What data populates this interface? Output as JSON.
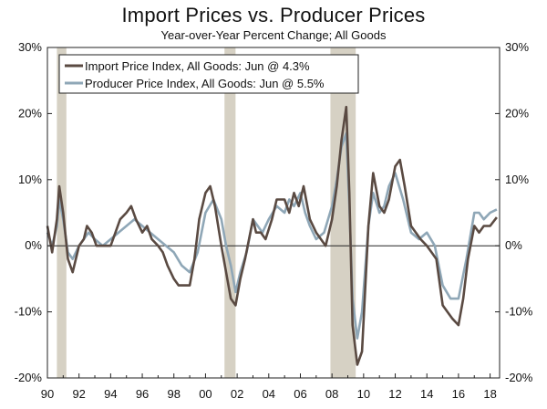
{
  "chart_data": {
    "type": "line",
    "title": "Import Prices vs. Producer Prices",
    "subtitle": "Year-over-Year Percent Change; All Goods",
    "xlabel": "",
    "ylabel": "",
    "xlim": [
      1990,
      2018.6
    ],
    "ylim": [
      -20,
      30
    ],
    "yticks": [
      -20,
      -10,
      0,
      10,
      20,
      30
    ],
    "ytick_labels": [
      "-20%",
      "-10%",
      "0%",
      "10%",
      "20%",
      "30%"
    ],
    "xtick_labels": [
      {
        "x": 1990,
        "label": "90"
      },
      {
        "x": 1992,
        "label": "92"
      },
      {
        "x": 1994,
        "label": "94"
      },
      {
        "x": 1996,
        "label": "96"
      },
      {
        "x": 1998,
        "label": "98"
      },
      {
        "x": 2000,
        "label": "00"
      },
      {
        "x": 2002,
        "label": "02"
      },
      {
        "x": 2004,
        "label": "04"
      },
      {
        "x": 2006,
        "label": "06"
      },
      {
        "x": 2008,
        "label": "08"
      },
      {
        "x": 2010,
        "label": "10"
      },
      {
        "x": 2012,
        "label": "12"
      },
      {
        "x": 2014,
        "label": "14"
      },
      {
        "x": 2016,
        "label": "16"
      },
      {
        "x": 2018,
        "label": "18"
      }
    ],
    "grid": false,
    "legend_position": "top-left",
    "recessions": [
      {
        "start": 1990.6,
        "end": 1991.2
      },
      {
        "start": 2001.2,
        "end": 2001.9
      },
      {
        "start": 2007.9,
        "end": 2009.5
      }
    ],
    "series": [
      {
        "name": "Import Price Index, All Goods: Jun @ 4.3%",
        "color": "#5a4a42",
        "x": [
          1990.0,
          1990.3,
          1990.6,
          1990.75,
          1991.0,
          1991.3,
          1991.6,
          1992.0,
          1992.3,
          1992.5,
          1992.8,
          1993.1,
          1993.5,
          1994.0,
          1994.3,
          1994.6,
          1995.0,
          1995.3,
          1995.6,
          1996.0,
          1996.3,
          1996.6,
          1997.0,
          1997.3,
          1997.6,
          1998.0,
          1998.3,
          1998.6,
          1999.0,
          1999.3,
          1999.6,
          2000.0,
          2000.3,
          2000.6,
          2001.0,
          2001.3,
          2001.6,
          2001.9,
          2002.2,
          2002.5,
          2003.0,
          2003.2,
          2003.5,
          2003.8,
          2004.2,
          2004.5,
          2005.0,
          2005.3,
          2005.6,
          2005.9,
          2006.2,
          2006.6,
          2007.0,
          2007.3,
          2007.6,
          2008.0,
          2008.3,
          2008.6,
          2008.9,
          2009.1,
          2009.3,
          2009.6,
          2009.9,
          2010.3,
          2010.6,
          2011.0,
          2011.3,
          2011.6,
          2012.0,
          2012.3,
          2012.6,
          2013.0,
          2013.3,
          2013.6,
          2014.0,
          2014.3,
          2014.6,
          2015.0,
          2015.3,
          2015.6,
          2016.0,
          2016.3,
          2016.6,
          2017.0,
          2017.3,
          2017.6,
          2018.0,
          2018.42
        ],
        "y": [
          3,
          -1,
          4,
          9,
          5,
          -2,
          -4,
          0,
          1,
          3,
          2,
          0,
          0,
          0,
          2,
          4,
          5,
          6,
          4,
          2,
          3,
          1,
          0,
          -1,
          -3,
          -5,
          -6,
          -6,
          -6,
          -2,
          4,
          8,
          9,
          6,
          0,
          -4,
          -8,
          -9,
          -5,
          -2,
          4,
          2,
          2,
          1,
          4,
          7,
          7,
          5,
          8,
          6,
          9,
          4,
          2,
          1,
          0,
          4,
          9,
          16,
          21,
          8,
          -12,
          -18,
          -16,
          3,
          11,
          6,
          5,
          7,
          12,
          13,
          9,
          3,
          2,
          1,
          0,
          -1,
          -2,
          -9,
          -10,
          -11,
          -12,
          -8,
          -2,
          3,
          2,
          3,
          3,
          4.3
        ]
      },
      {
        "name": "Producer Price Index, All Goods: Jun @ 5.5%",
        "color": "#8fa7b7",
        "x": [
          1990.0,
          1990.3,
          1990.6,
          1990.75,
          1991.0,
          1991.3,
          1991.6,
          1992.0,
          1992.3,
          1992.6,
          1993.0,
          1993.5,
          1994.0,
          1994.5,
          1995.0,
          1995.5,
          1996.0,
          1996.5,
          1997.0,
          1997.5,
          1998.0,
          1998.5,
          1999.0,
          1999.5,
          2000.0,
          2000.5,
          2001.0,
          2001.3,
          2001.6,
          2001.9,
          2002.2,
          2002.6,
          2003.0,
          2003.3,
          2003.6,
          2004.0,
          2004.5,
          2005.0,
          2005.3,
          2005.6,
          2006.0,
          2006.3,
          2006.6,
          2007.0,
          2007.5,
          2008.0,
          2008.3,
          2008.6,
          2008.9,
          2009.1,
          2009.3,
          2009.6,
          2009.9,
          2010.3,
          2010.6,
          2011.0,
          2011.3,
          2011.6,
          2012.0,
          2012.5,
          2013.0,
          2013.5,
          2014.0,
          2014.5,
          2015.0,
          2015.5,
          2016.0,
          2016.5,
          2017.0,
          2017.3,
          2017.6,
          2018.0,
          2018.42
        ],
        "y": [
          2,
          0,
          3,
          7,
          4,
          -1,
          -2,
          0,
          1,
          2,
          1,
          0,
          1,
          2,
          3,
          4,
          3,
          2,
          1,
          0,
          -1,
          -3,
          -4,
          -1,
          5,
          7,
          4,
          0,
          -3,
          -7,
          -4,
          -1,
          4,
          3,
          2,
          4,
          6,
          5,
          7,
          6,
          8,
          5,
          3,
          1,
          2,
          6,
          10,
          15,
          17,
          6,
          -8,
          -14,
          -10,
          3,
          8,
          5,
          6,
          9,
          11,
          7,
          2,
          1,
          2,
          0,
          -6,
          -8,
          -8,
          -2,
          5,
          5,
          4,
          5,
          5.5
        ]
      }
    ]
  }
}
